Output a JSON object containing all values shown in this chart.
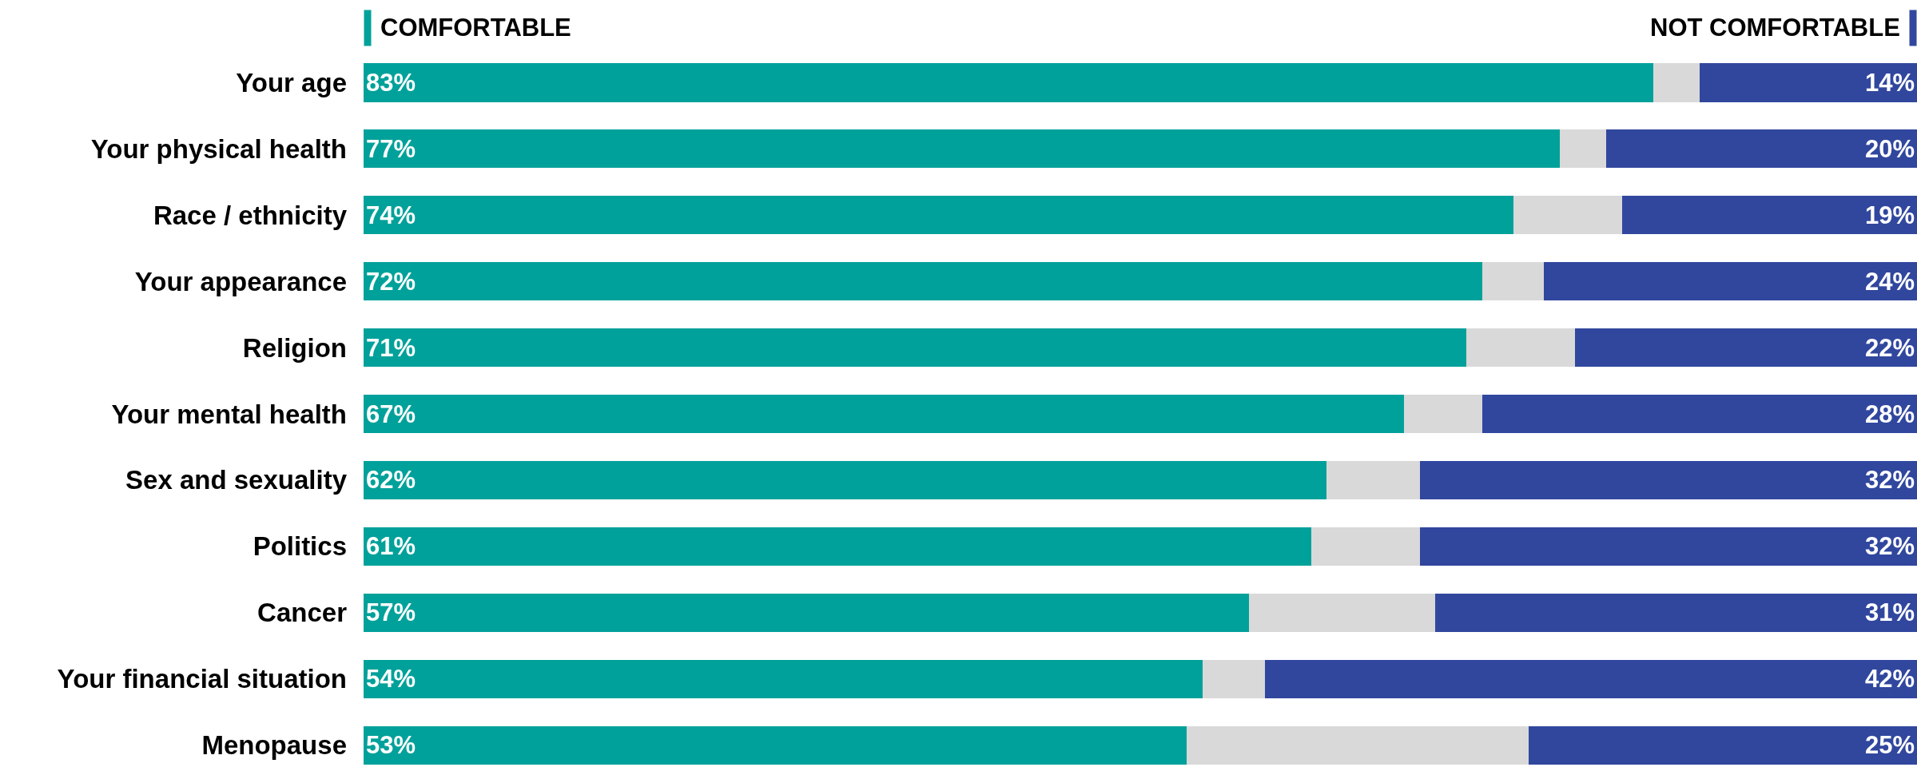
{
  "chart_data": {
    "type": "bar",
    "orientation": "horizontal",
    "stacked": true,
    "legend": "top",
    "categories": [
      "Your age",
      "Your physical health",
      "Race / ethnicity",
      "Your appearance",
      "Religion",
      "Your mental health",
      "Sex and sexuality",
      "Politics",
      "Cancer",
      "Your financial situation",
      "Menopause"
    ],
    "xlim": [
      0,
      100
    ],
    "series": [
      {
        "name": "COMFORTABLE",
        "color": "#00a19a",
        "values": [
          83,
          77,
          74,
          72,
          71,
          67,
          62,
          61,
          57,
          54,
          53
        ],
        "value_labels": [
          "83%",
          "77%",
          "74%",
          "72%",
          "71%",
          "67%",
          "62%",
          "61%",
          "57%",
          "54%",
          "53%"
        ]
      },
      {
        "color": "#d9d9d9",
        "values": [
          3,
          3,
          7,
          4,
          7,
          5,
          6,
          7,
          12,
          4,
          22
        ]
      },
      {
        "name": "NOT COMFORTABLE",
        "color": "#31479e",
        "values": [
          14,
          20,
          19,
          24,
          22,
          28,
          32,
          32,
          31,
          42,
          25
        ],
        "value_labels": [
          "14%",
          "20%",
          "19%",
          "24%",
          "22%",
          "28%",
          "32%",
          "32%",
          "31%",
          "42%",
          "25%"
        ]
      }
    ]
  }
}
